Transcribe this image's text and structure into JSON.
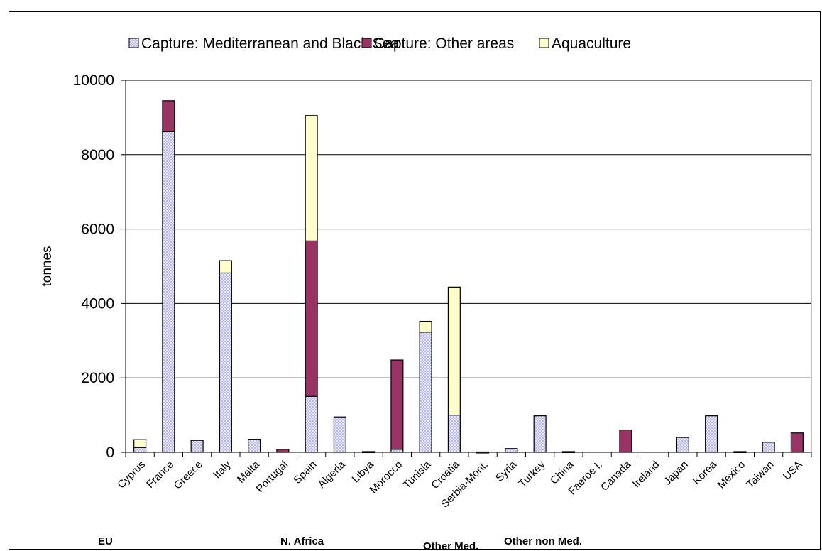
{
  "chart_data": {
    "type": "bar",
    "stacked": true,
    "ylabel": "tonnes",
    "ylim": [
      0,
      10000
    ],
    "yticks": [
      0,
      2000,
      4000,
      6000,
      8000,
      10000
    ],
    "grid": true,
    "legend_position": "top",
    "categories": [
      "Cyprus",
      "France",
      "Greece",
      "Italy",
      "Malta",
      "Portugal",
      "Spain",
      "Algeria",
      "Libya",
      "Morocco",
      "Tunisia",
      "Croatia",
      "Serbia-Mont.",
      "Syria",
      "Turkey",
      "China",
      "Faeroe I.",
      "Canada",
      "Ireland",
      "Japan",
      "Korea",
      "Mexico",
      "Taiwan",
      "USA"
    ],
    "series": [
      {
        "name": "Capture: Mediterranean and Black Sea",
        "color": "#ccccff",
        "pattern": "dotted",
        "values": [
          130,
          8620,
          320,
          4820,
          350,
          0,
          1500,
          950,
          0,
          80,
          3230,
          1000,
          0,
          100,
          980,
          0,
          0,
          0,
          0,
          400,
          980,
          0,
          270,
          0
        ]
      },
      {
        "name": "Capture: Other areas",
        "color": "#993366",
        "values": [
          0,
          830,
          0,
          0,
          0,
          80,
          4180,
          0,
          20,
          2400,
          0,
          0,
          10,
          0,
          0,
          20,
          0,
          600,
          0,
          0,
          0,
          20,
          0,
          520
        ]
      },
      {
        "name": "Aquaculture",
        "color": "#ffffcc",
        "values": [
          210,
          0,
          0,
          330,
          0,
          0,
          3370,
          0,
          0,
          0,
          290,
          3440,
          0,
          0,
          0,
          0,
          0,
          0,
          0,
          0,
          0,
          0,
          0,
          0
        ]
      }
    ],
    "groups": [
      {
        "label": "EU",
        "start": 0
      },
      {
        "label": "N. Africa",
        "start": 7
      },
      {
        "label": "Other Med.",
        "start": 11
      },
      {
        "label": "Other non Med.",
        "start": 15
      }
    ]
  }
}
